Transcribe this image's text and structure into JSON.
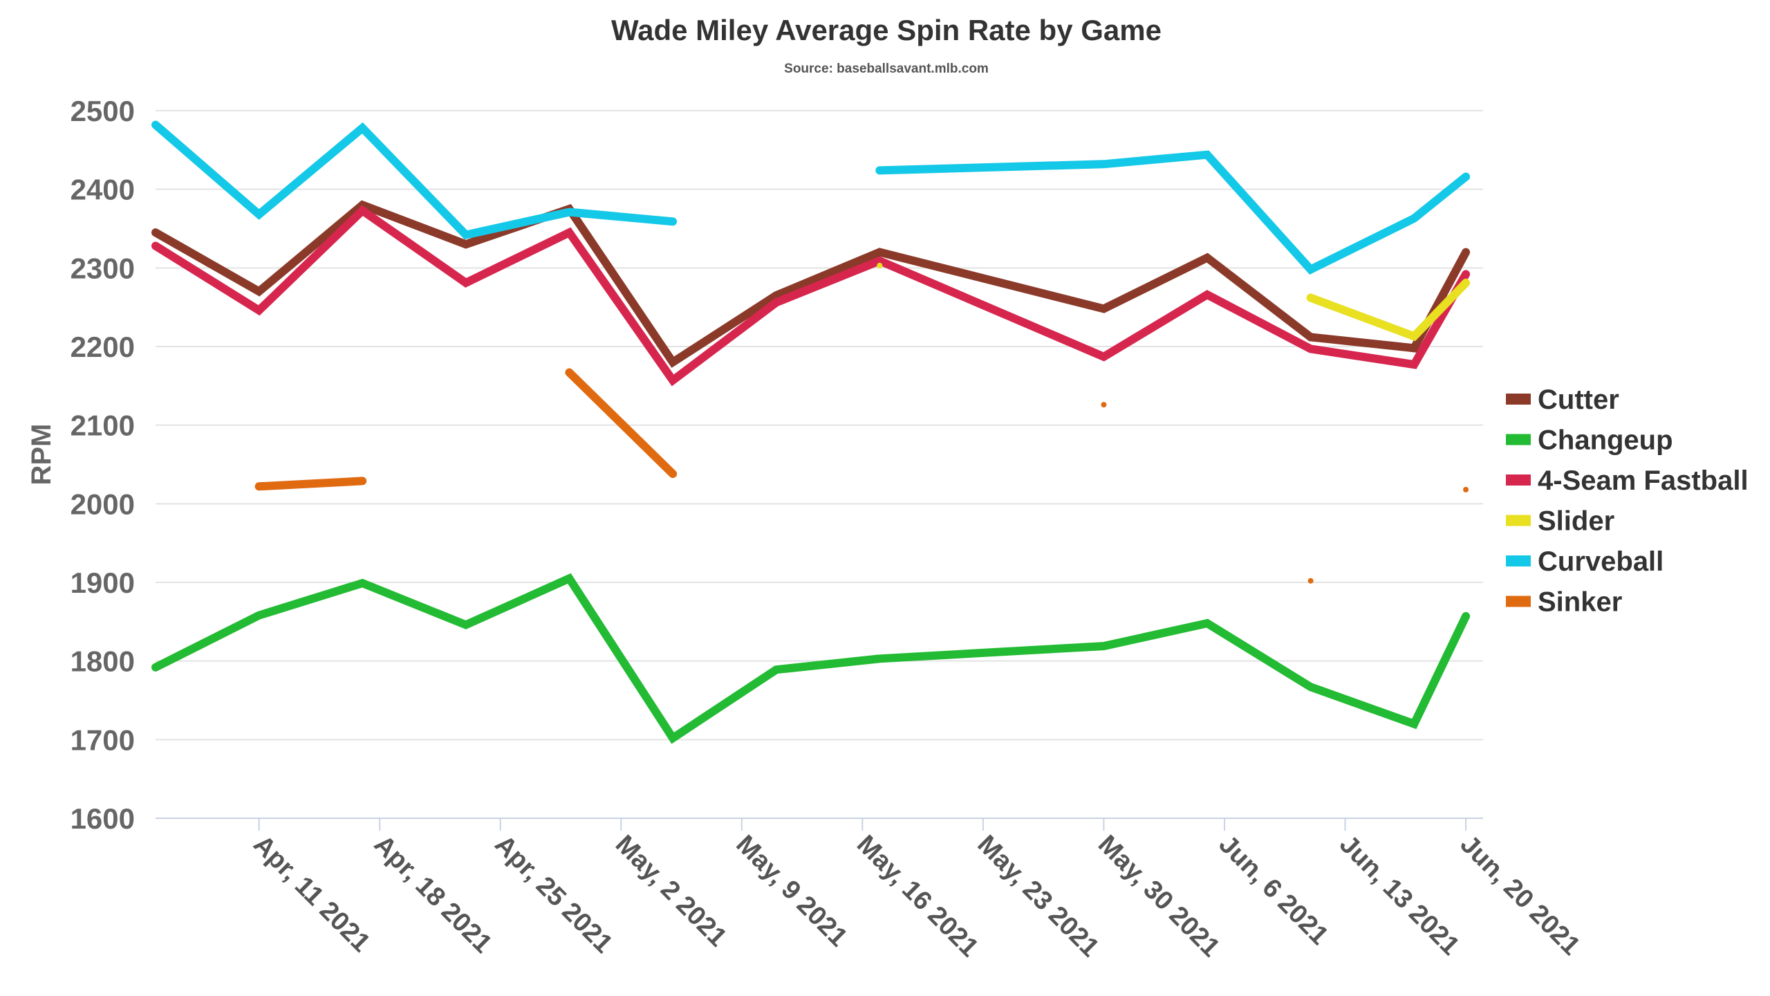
{
  "chart_data": {
    "type": "line",
    "title": "Wade Miley Average Spin Rate by Game",
    "subtitle": "Source: baseballsavant.mlb.com",
    "xlabel": "",
    "ylabel": "RPM",
    "ylim": [
      1600,
      2500
    ],
    "yticks": [
      1600,
      1700,
      1800,
      1900,
      2000,
      2100,
      2200,
      2300,
      2400,
      2500
    ],
    "xlim": [
      "2021-04-05",
      "2021-06-21"
    ],
    "xticks": [
      {
        "date": "2021-04-11",
        "label": "Apr, 11 2021"
      },
      {
        "date": "2021-04-18",
        "label": "Apr, 18 2021"
      },
      {
        "date": "2021-04-25",
        "label": "Apr, 25 2021"
      },
      {
        "date": "2021-05-02",
        "label": "May, 2 2021"
      },
      {
        "date": "2021-05-09",
        "label": "May, 9 2021"
      },
      {
        "date": "2021-05-16",
        "label": "May, 16 2021"
      },
      {
        "date": "2021-05-23",
        "label": "May, 23 2021"
      },
      {
        "date": "2021-05-30",
        "label": "May, 30 2021"
      },
      {
        "date": "2021-06-06",
        "label": "Jun, 6 2021"
      },
      {
        "date": "2021-06-13",
        "label": "Jun, 13 2021"
      },
      {
        "date": "2021-06-20",
        "label": "Jun, 20 2021"
      }
    ],
    "grid": true,
    "legend_position": "right",
    "series": [
      {
        "name": "Cutter",
        "color": "#8B3A2A",
        "points": [
          [
            "2021-04-05",
            2345
          ],
          [
            "2021-04-11",
            2270
          ],
          [
            "2021-04-17",
            2380
          ],
          [
            "2021-04-23",
            2330
          ],
          [
            "2021-04-29",
            2375
          ],
          [
            "2021-05-05",
            2180
          ],
          [
            "2021-05-11",
            2265
          ],
          [
            "2021-05-17",
            2320
          ],
          [
            "2021-05-30",
            2248
          ],
          [
            "2021-06-05",
            2313
          ],
          [
            "2021-06-11",
            2212
          ],
          [
            "2021-06-17",
            2198
          ],
          [
            "2021-06-20",
            2320
          ]
        ]
      },
      {
        "name": "Changeup",
        "color": "#22BB33",
        "points": [
          [
            "2021-04-05",
            1792
          ],
          [
            "2021-04-11",
            1858
          ],
          [
            "2021-04-17",
            1899
          ],
          [
            "2021-04-23",
            1846
          ],
          [
            "2021-04-29",
            1905
          ],
          [
            "2021-05-05",
            1702
          ],
          [
            "2021-05-11",
            1789
          ],
          [
            "2021-05-17",
            1803
          ],
          [
            "2021-05-30",
            1819
          ],
          [
            "2021-06-05",
            1848
          ],
          [
            "2021-06-11",
            1767
          ],
          [
            "2021-06-17",
            1720
          ],
          [
            "2021-06-20",
            1857
          ]
        ]
      },
      {
        "name": "4-Seam Fastball",
        "color": "#D7264E",
        "points": [
          [
            "2021-04-05",
            2328
          ],
          [
            "2021-04-11",
            2246
          ],
          [
            "2021-04-17",
            2373
          ],
          [
            "2021-04-23",
            2281
          ],
          [
            "2021-04-29",
            2345
          ],
          [
            "2021-05-05",
            2157
          ],
          [
            "2021-05-11",
            2256
          ],
          [
            "2021-05-17",
            2309
          ],
          [
            "2021-05-30",
            2187
          ],
          [
            "2021-06-05",
            2266
          ],
          [
            "2021-06-11",
            2197
          ],
          [
            "2021-06-17",
            2177
          ],
          [
            "2021-06-20",
            2292
          ]
        ]
      },
      {
        "name": "Slider",
        "color": "#E8E020",
        "points": [
          [
            "2021-04-05",
            null
          ],
          [
            "2021-04-11",
            null
          ],
          [
            "2021-04-17",
            null
          ],
          [
            "2021-04-23",
            null
          ],
          [
            "2021-04-29",
            null
          ],
          [
            "2021-05-05",
            null
          ],
          [
            "2021-05-11",
            null
          ],
          [
            "2021-05-17",
            2303
          ],
          [
            "2021-05-30",
            null
          ],
          [
            "2021-06-05",
            null
          ],
          [
            "2021-06-11",
            2262
          ],
          [
            "2021-06-17",
            2213
          ],
          [
            "2021-06-20",
            2281
          ]
        ]
      },
      {
        "name": "Curveball",
        "color": "#14C8E8",
        "points": [
          [
            "2021-04-05",
            2482
          ],
          [
            "2021-04-11",
            2368
          ],
          [
            "2021-04-17",
            2478
          ],
          [
            "2021-04-23",
            2342
          ],
          [
            "2021-04-29",
            2371
          ],
          [
            "2021-05-05",
            2359
          ],
          [
            "2021-05-11",
            null
          ],
          [
            "2021-05-17",
            2424
          ],
          [
            "2021-05-30",
            2432
          ],
          [
            "2021-06-05",
            2444
          ],
          [
            "2021-06-11",
            2298
          ],
          [
            "2021-06-17",
            2363
          ],
          [
            "2021-06-20",
            2416
          ]
        ]
      },
      {
        "name": "Sinker",
        "color": "#E06A10",
        "points": [
          [
            "2021-04-05",
            null
          ],
          [
            "2021-04-11",
            2022
          ],
          [
            "2021-04-17",
            2029
          ],
          [
            "2021-04-23",
            null
          ],
          [
            "2021-04-29",
            2167
          ],
          [
            "2021-05-05",
            2038
          ],
          [
            "2021-05-11",
            null
          ],
          [
            "2021-05-17",
            null
          ],
          [
            "2021-05-30",
            2126
          ],
          [
            "2021-06-05",
            null
          ],
          [
            "2021-06-11",
            1902
          ],
          [
            "2021-06-17",
            null
          ],
          [
            "2021-06-20",
            2018
          ]
        ]
      }
    ]
  }
}
